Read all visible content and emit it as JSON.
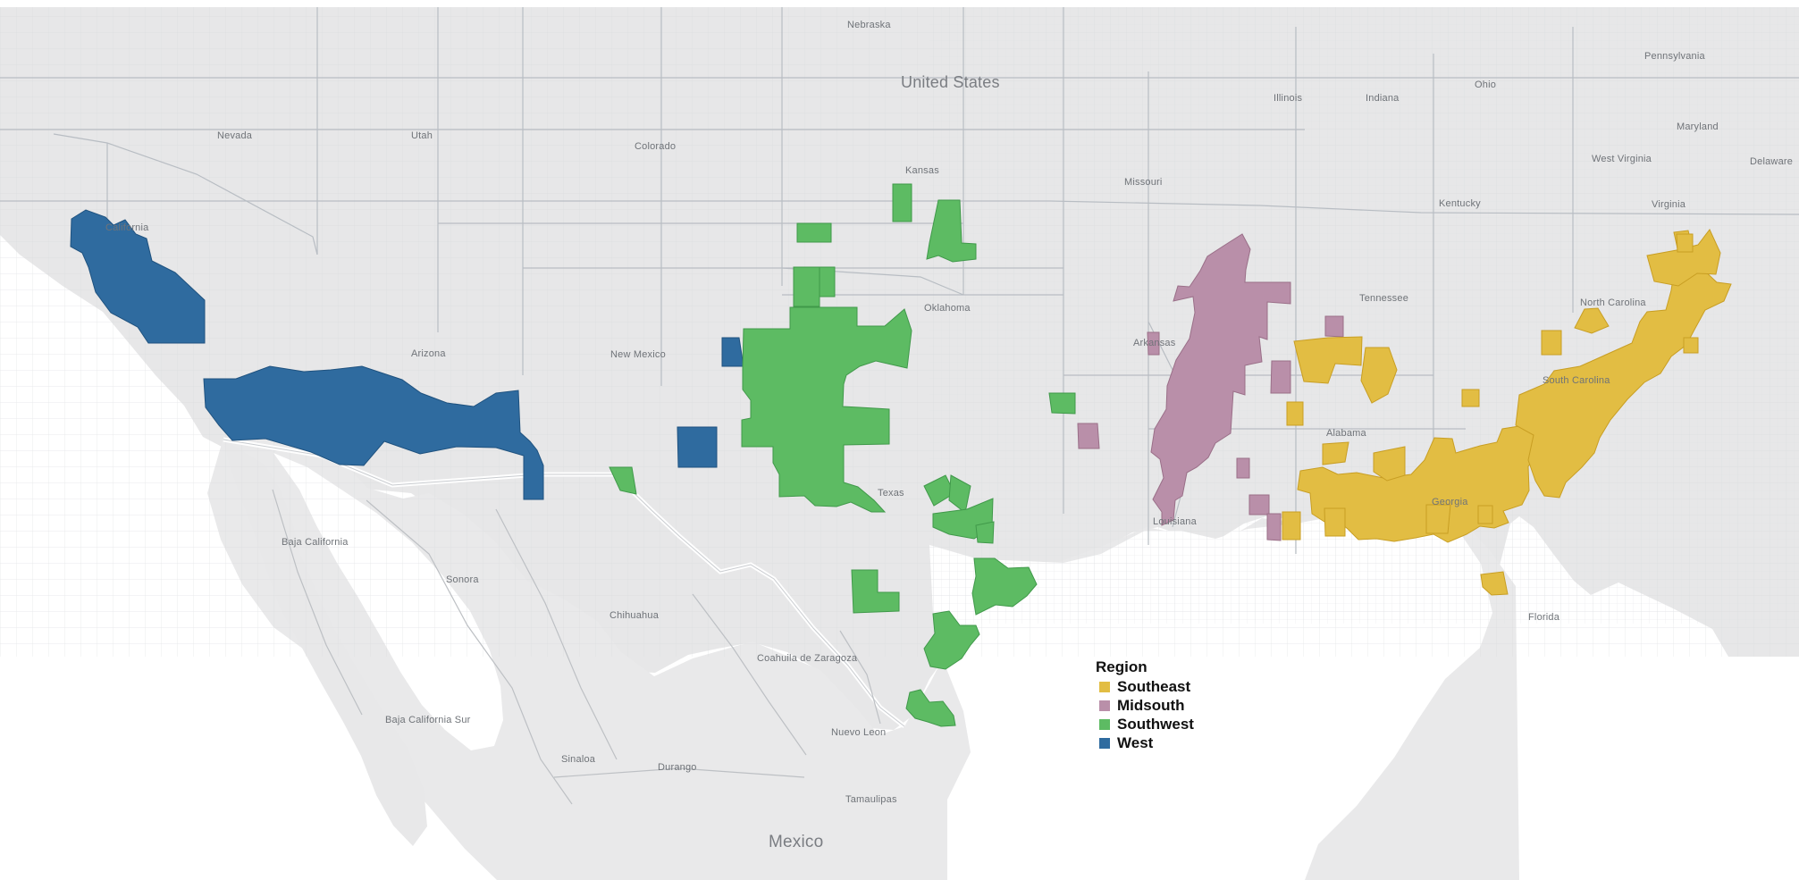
{
  "map": {
    "labels": {
      "nebraska": "Nebraska",
      "united_states": "United States",
      "nevada": "Nevada",
      "utah": "Utah",
      "colorado": "Colorado",
      "kansas": "Kansas",
      "missouri": "Missouri",
      "illinois": "Illinois",
      "indiana": "Indiana",
      "ohio": "Ohio",
      "pennsylvania": "Pennsylvania",
      "maryland": "Maryland",
      "delaware": "Delaware",
      "west_virginia": "West Virginia",
      "virginia": "Virginia",
      "kentucky": "Kentucky",
      "tennessee": "Tennessee",
      "north_carolina": "North Carolina",
      "south_carolina": "South Carolina",
      "alabama": "Alabama",
      "georgia": "Georgia",
      "florida": "Florida",
      "louisiana": "Louisiana",
      "arkansas": "Arkansas",
      "oklahoma": "Oklahoma",
      "new_mexico": "New Mexico",
      "arizona": "Arizona",
      "california": "California",
      "texas": "Texas",
      "baja_california": "Baja California",
      "baja_california_sur": "Baja California Sur",
      "sonora": "Sonora",
      "chihuahua": "Chihuahua",
      "coahuila": "Coahuila de Zaragoza",
      "nuevo_leon": "Nuevo Leon",
      "durango": "Durango",
      "sinaloa": "Sinaloa",
      "tamaulipas": "Tamaulipas",
      "mexico": "Mexico"
    },
    "colors": {
      "background": "#ffffff",
      "land": "#e7e7e8",
      "mexico_land": "#e9e9ea",
      "county_lines": "#cfd1d4",
      "state_lines": "#b8bcc1",
      "water": "#ffffff",
      "border": "#d7d8da"
    }
  },
  "legend": {
    "title": "Region",
    "items": [
      {
        "label": "Southeast",
        "color": "#e2bd43"
      },
      {
        "label": "Midsouth",
        "color": "#b98fa9"
      },
      {
        "label": "Southwest",
        "color": "#5dbb63"
      },
      {
        "label": "West",
        "color": "#2f6b9f"
      }
    ]
  }
}
